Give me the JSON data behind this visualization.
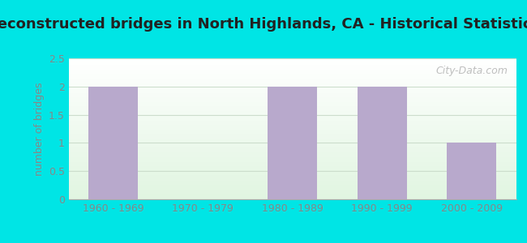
{
  "title": "Reconstructed bridges in North Highlands, CA - Historical Statistics",
  "categories": [
    "1960 - 1969",
    "1970 - 1979",
    "1980 - 1989",
    "1990 - 1999",
    "2000 - 2009"
  ],
  "values": [
    2,
    0,
    2,
    2,
    1
  ],
  "ylabel": "number of bridges",
  "ylim": [
    0,
    2.5
  ],
  "yticks": [
    0,
    0.5,
    1,
    1.5,
    2,
    2.5
  ],
  "bar_color": "#b8a9cc",
  "bar_width": 0.55,
  "bg_outer": "#00e5e5",
  "title_color": "#222222",
  "axis_label_color": "#888888",
  "tick_label_color": "#888888",
  "watermark": "City-Data.com",
  "title_fontsize": 13,
  "ylabel_fontsize": 9,
  "tick_fontsize": 9,
  "grid_color": "#ccddcc"
}
